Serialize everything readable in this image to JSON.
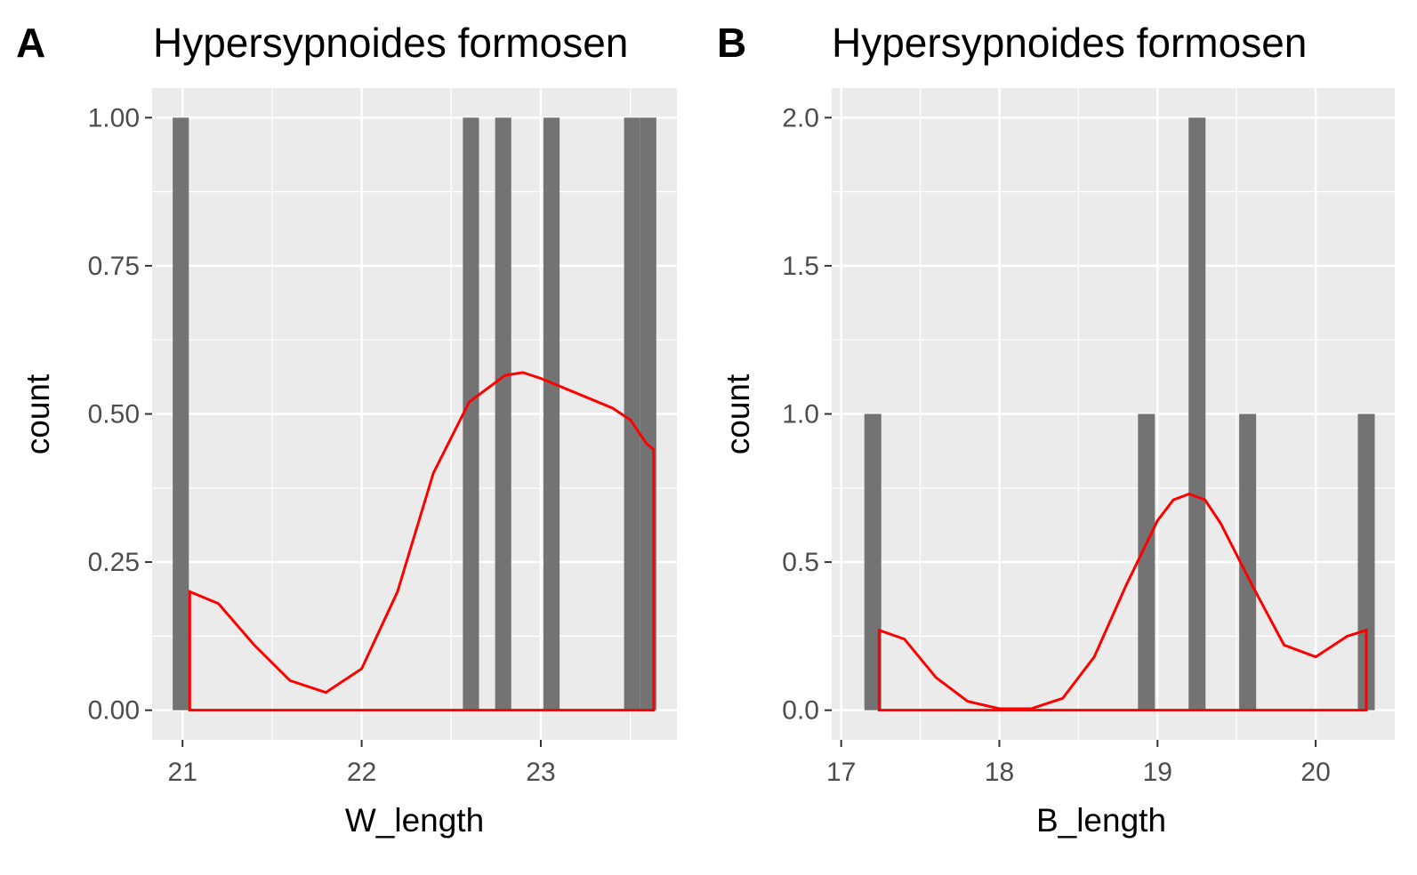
{
  "chart_data": [
    {
      "type": "bar",
      "tag": "A",
      "title": "Hypersypnoides formosen",
      "xlabel": "W_length",
      "ylabel": "count",
      "xlim": [
        20.83,
        23.76
      ],
      "ylim": [
        -0.05,
        1.05
      ],
      "x_ticks": [
        21,
        22,
        23
      ],
      "x_tick_labels": [
        "21",
        "22",
        "23"
      ],
      "y_ticks": [
        0,
        0.25,
        0.5,
        0.75,
        1
      ],
      "y_tick_labels": [
        "0.00",
        "0.25",
        "0.50",
        "0.75",
        "1.00"
      ],
      "grid": true,
      "bin_width": 0.09,
      "bars": [
        {
          "x": 20.99,
          "count": 1
        },
        {
          "x": 22.61,
          "count": 1
        },
        {
          "x": 22.79,
          "count": 1
        },
        {
          "x": 23.06,
          "count": 1
        },
        {
          "x": 23.51,
          "count": 1
        },
        {
          "x": 23.6,
          "count": 1
        }
      ],
      "density": {
        "x": [
          21.04,
          21.2,
          21.4,
          21.6,
          21.8,
          22.0,
          22.2,
          22.4,
          22.6,
          22.8,
          22.9,
          23.0,
          23.2,
          23.4,
          23.5,
          23.59,
          23.63
        ],
        "y": [
          0.2,
          0.18,
          0.11,
          0.05,
          0.03,
          0.07,
          0.2,
          0.4,
          0.52,
          0.565,
          0.57,
          0.56,
          0.535,
          0.51,
          0.49,
          0.45,
          0.44
        ]
      },
      "bar_color": "#737373",
      "line_color": "#ff0000"
    },
    {
      "type": "bar",
      "tag": "B",
      "title": "Hypersypnoides formosen",
      "xlabel": "B_length",
      "ylabel": "count",
      "xlim": [
        16.94,
        20.5
      ],
      "ylim": [
        -0.1,
        2.1
      ],
      "x_ticks": [
        17,
        18,
        19,
        20
      ],
      "x_tick_labels": [
        "17",
        "18",
        "19",
        "20"
      ],
      "y_ticks": [
        0,
        0.5,
        1,
        1.5,
        2
      ],
      "y_tick_labels": [
        "0.0",
        "0.5",
        "1.0",
        "1.5",
        "2.0"
      ],
      "grid": true,
      "bin_width": 0.107,
      "bars": [
        {
          "x": 17.2,
          "count": 1
        },
        {
          "x": 18.93,
          "count": 1
        },
        {
          "x": 19.25,
          "count": 2
        },
        {
          "x": 19.57,
          "count": 1
        },
        {
          "x": 20.32,
          "count": 1
        }
      ],
      "density": {
        "x": [
          17.24,
          17.4,
          17.6,
          17.8,
          18.0,
          18.2,
          18.4,
          18.6,
          18.8,
          19.0,
          19.1,
          19.2,
          19.3,
          19.4,
          19.6,
          19.8,
          20.0,
          20.2,
          20.32
        ],
        "y": [
          0.27,
          0.24,
          0.11,
          0.03,
          0.005,
          0.005,
          0.04,
          0.18,
          0.42,
          0.64,
          0.71,
          0.73,
          0.71,
          0.63,
          0.42,
          0.22,
          0.18,
          0.25,
          0.27
        ]
      },
      "bar_color": "#737373",
      "line_color": "#ff0000"
    }
  ]
}
